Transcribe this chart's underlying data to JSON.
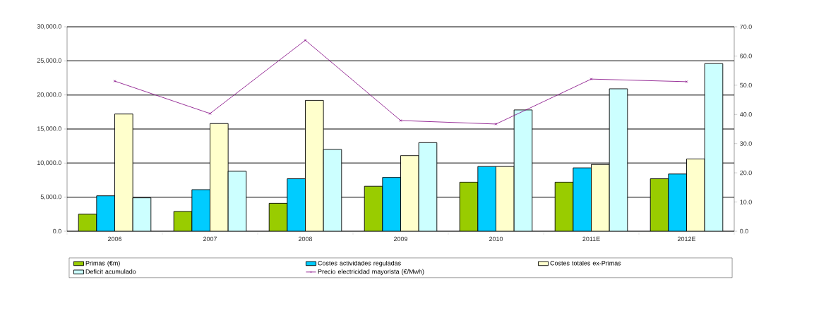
{
  "chart_data": {
    "type": "bar",
    "categories": [
      "2006",
      "2007",
      "2008",
      "2009",
      "2010",
      "2011E",
      "2012E"
    ],
    "series": [
      {
        "name": "Primas (€m)",
        "color": "#99cc00",
        "values": [
          2500,
          2900,
          4100,
          6600,
          7200,
          7200,
          7700
        ]
      },
      {
        "name": "Costes actividades reguladas",
        "color": "#00ccff",
        "values": [
          5200,
          6100,
          7700,
          7900,
          9500,
          9300,
          8400
        ]
      },
      {
        "name": "Costes totales ex-Primas",
        "color": "#ffffcc",
        "values": [
          17200,
          15800,
          19200,
          11100,
          9500,
          9800,
          10600
        ]
      },
      {
        "name": "Deficit acumulado",
        "color": "#ccffff",
        "values": [
          4900,
          8800,
          12000,
          13000,
          17800,
          20900,
          24600
        ]
      },
      {
        "name": "Precio electricidad mayorista (€/Mwh)",
        "color": "#800080",
        "type": "line",
        "axis": "y2",
        "values": [
          51.4,
          40.3,
          65.4,
          37.9,
          36.7,
          52.1,
          51.2
        ]
      }
    ],
    "ylim": [
      0,
      30000
    ],
    "yticks": [
      {
        "value": 0,
        "label": "0.0"
      },
      {
        "value": 5000,
        "label": "5,000.0"
      },
      {
        "value": 10000,
        "label": "10,000.0"
      },
      {
        "value": 15000,
        "label": "15,000.0"
      },
      {
        "value": 20000,
        "label": "20,000.0"
      },
      {
        "value": 25000,
        "label": "25,000.0"
      },
      {
        "value": 30000,
        "label": "30,000.0"
      }
    ],
    "y2lim": [
      0,
      70
    ],
    "y2ticks": [
      {
        "value": 0,
        "label": "0.0"
      },
      {
        "value": 10,
        "label": "10.0"
      },
      {
        "value": 20,
        "label": "20.0"
      },
      {
        "value": 30,
        "label": "30.0"
      },
      {
        "value": 40,
        "label": "40.0"
      },
      {
        "value": 50,
        "label": "50.0"
      },
      {
        "value": 60,
        "label": "60.0"
      },
      {
        "value": 70,
        "label": "70.0"
      }
    ],
    "grid": "y",
    "legend": "bottom",
    "marker": "cross"
  }
}
